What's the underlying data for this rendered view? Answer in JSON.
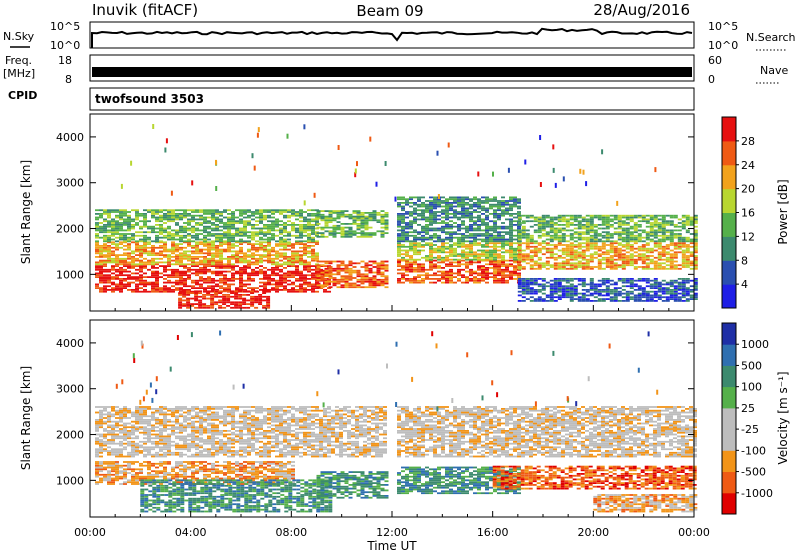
{
  "header": {
    "station": "Inuvik (fitACF)",
    "beam": "Beam 09",
    "date": "28/Aug/2016"
  },
  "top_panels": {
    "nsky_label": "N.Sky",
    "nsearch_label": "N.Search",
    "nsky_ticks": [
      "10^5",
      "10^0"
    ],
    "freq_label": [
      "Freq.",
      "[MHz]"
    ],
    "freq_ticks": [
      "18",
      "8"
    ],
    "nave_label": "Nave",
    "nave_ticks": [
      "60",
      "0"
    ],
    "cpid_label": "CPID",
    "cpid_text": "twofsound 3503"
  },
  "colors": {
    "power": [
      "#1f1fe6",
      "#2a4fb0",
      "#3c8a6e",
      "#55b04a",
      "#b8d630",
      "#f2a21c",
      "#ef5a14",
      "#e61010"
    ],
    "velocity": [
      "#e00000",
      "#ef5a14",
      "#f29418",
      "#bdbdbd",
      "#bdbdbd",
      "#55b04a",
      "#3c8a6e",
      "#2f6fb0",
      "#1f2fa6"
    ]
  },
  "chart_data": [
    {
      "type": "heatmap",
      "name": "power",
      "ylabel": "Slant Range [km]",
      "ylim": [
        200,
        4500
      ],
      "yticks": [
        "1000",
        "2000",
        "3000",
        "4000"
      ],
      "colorbar": {
        "label": "Power [dB]",
        "ticks": [
          "4",
          "8",
          "12",
          "16",
          "20",
          "24",
          "28"
        ]
      },
      "x_hours": [
        0,
        24
      ],
      "regions": [
        {
          "t": [
            0.2,
            9.5
          ],
          "r": [
            600,
            1200
          ],
          "level": 7
        },
        {
          "t": [
            3.5,
            7.0
          ],
          "r": [
            250,
            650
          ],
          "level": 7
        },
        {
          "t": [
            0.2,
            9.0
          ],
          "r": [
            1200,
            1700
          ],
          "level": 5
        },
        {
          "t": [
            0.2,
            9.0
          ],
          "r": [
            1700,
            2400
          ],
          "level": 3
        },
        {
          "t": [
            9.0,
            11.8
          ],
          "r": [
            700,
            1300
          ],
          "level": 6
        },
        {
          "t": [
            9.0,
            11.8
          ],
          "r": [
            1800,
            2400
          ],
          "level": 3
        },
        {
          "t": [
            12.2,
            17.0
          ],
          "r": [
            800,
            1300
          ],
          "level": 6
        },
        {
          "t": [
            12.2,
            17.0
          ],
          "r": [
            1300,
            1700
          ],
          "level": 4
        },
        {
          "t": [
            12.2,
            17.0
          ],
          "r": [
            1700,
            2700
          ],
          "level": 2
        },
        {
          "t": [
            17.0,
            24.0
          ],
          "r": [
            1100,
            1700
          ],
          "level": 5
        },
        {
          "t": [
            17.0,
            24.0
          ],
          "r": [
            1700,
            2300
          ],
          "level": 3
        },
        {
          "t": [
            17.0,
            24.0
          ],
          "r": [
            400,
            900
          ],
          "level": 1
        }
      ]
    },
    {
      "type": "heatmap",
      "name": "velocity",
      "xlabel": "Time UT",
      "ylabel": "Slant Range [km]",
      "ylim": [
        200,
        4500
      ],
      "yticks": [
        "1000",
        "2000",
        "3000",
        "4000"
      ],
      "xticks": [
        "00:00",
        "04:00",
        "08:00",
        "12:00",
        "16:00",
        "20:00",
        "00:00"
      ],
      "colorbar": {
        "label": "Velocity  [m s⁻¹]",
        "ticks": [
          "1000",
          "500",
          "100",
          "25",
          "-25",
          "-100",
          "-500",
          "-1000"
        ]
      },
      "x_hours": [
        0,
        24
      ],
      "regions": [
        {
          "t": [
            0.2,
            8.0
          ],
          "r": [
            900,
            1400
          ],
          "level": 2
        },
        {
          "t": [
            2.0,
            9.5
          ],
          "r": [
            300,
            1000
          ],
          "level": 6
        },
        {
          "t": [
            0.2,
            11.8
          ],
          "r": [
            1500,
            2600
          ],
          "level": 3
        },
        {
          "t": [
            9.0,
            11.8
          ],
          "r": [
            600,
            1200
          ],
          "level": 6
        },
        {
          "t": [
            12.2,
            24.0
          ],
          "r": [
            1500,
            2600
          ],
          "level": 3
        },
        {
          "t": [
            12.2,
            17.0
          ],
          "r": [
            700,
            1300
          ],
          "level": 6
        },
        {
          "t": [
            16.0,
            24.0
          ],
          "r": [
            800,
            1300
          ],
          "level": 1
        },
        {
          "t": [
            20.0,
            24.0
          ],
          "r": [
            300,
            700
          ],
          "level": 2
        }
      ]
    }
  ]
}
